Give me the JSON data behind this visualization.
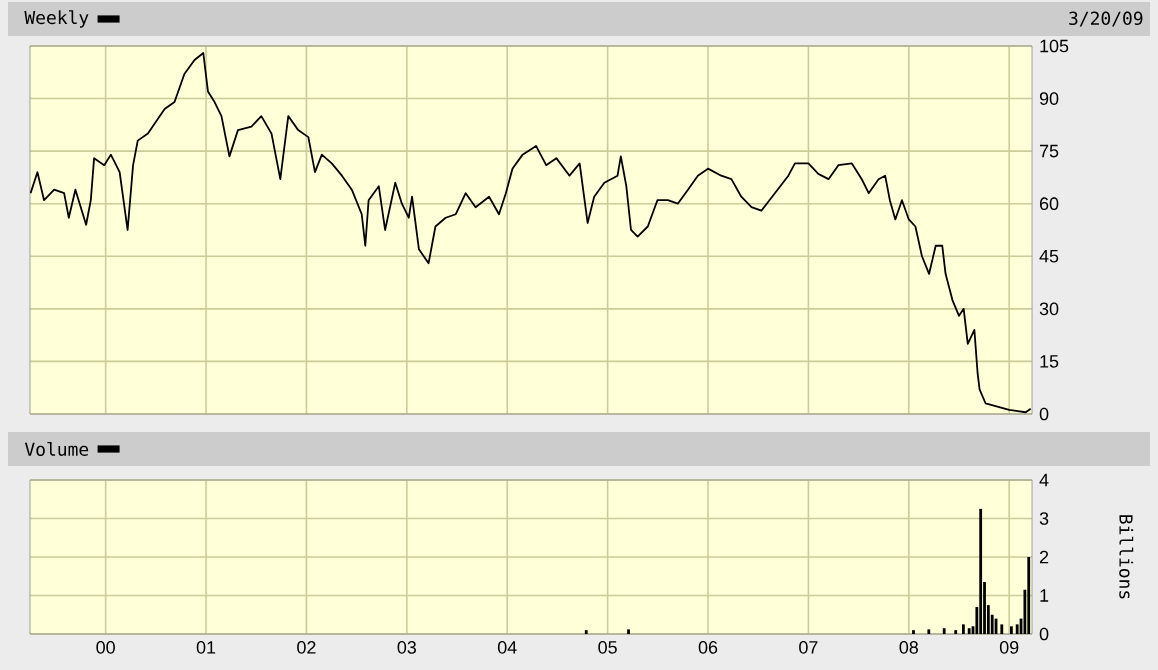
{
  "chart_data": [
    {
      "type": "line",
      "annotations": [
        "3/20/09"
      ],
      "legend": "top left",
      "grid": true,
      "tick_labels": "y",
      "xlim": [
        "1999-04-01",
        "2009-03-25"
      ],
      "xticks": [
        {
          "value": "2000-01-01",
          "label": null
        },
        {
          "value": "2001-01-01",
          "label": null
        },
        {
          "value": "2002-01-01",
          "label": null
        },
        {
          "value": "2003-01-01",
          "label": null
        },
        {
          "value": "2004-01-01",
          "label": null
        },
        {
          "value": "2005-01-01",
          "label": null
        },
        {
          "value": "2006-01-01",
          "label": null
        },
        {
          "value": "2007-01-01",
          "label": null
        },
        {
          "value": "2008-01-01",
          "label": null
        },
        {
          "value": "2009-01-01",
          "label": null
        }
      ],
      "ylim": [
        0,
        105
      ],
      "yticks": [
        0,
        15,
        30,
        45,
        60,
        75,
        90,
        105
      ],
      "series": [
        {
          "name": "Weekly",
          "color": "#000000",
          "x": [
            "1999-04-03",
            "1999-04-28",
            "1999-05-22",
            "1999-06-28",
            "1999-08-03",
            "1999-08-20",
            "1999-09-13",
            "1999-10-22",
            "1999-11-08",
            "1999-11-20",
            "1999-12-27",
            "2000-01-20",
            "2000-02-21",
            "2000-03-21",
            "2000-04-10",
            "2000-04-27",
            "2000-06-03",
            "2000-08-03",
            "2000-09-08",
            "2000-10-14",
            "2000-11-20",
            "2000-12-22",
            "2001-01-08",
            "2001-02-01",
            "2001-02-26",
            "2001-03-27",
            "2001-04-27",
            "2001-06-15",
            "2001-07-21",
            "2001-08-27",
            "2001-09-28",
            "2001-10-27",
            "2001-12-02",
            "2002-01-08",
            "2002-02-01",
            "2002-02-26",
            "2002-04-03",
            "2002-05-10",
            "2002-06-15",
            "2002-07-21",
            "2002-08-03",
            "2002-08-15",
            "2002-09-21",
            "2002-10-14",
            "2002-11-20",
            "2002-12-14",
            "2003-01-08",
            "2003-01-20",
            "2003-02-14",
            "2003-03-21",
            "2003-04-15",
            "2003-05-22",
            "2003-06-28",
            "2003-08-03",
            "2003-09-08",
            "2003-10-27",
            "2003-12-02",
            "2003-12-27",
            "2004-01-20",
            "2004-02-26",
            "2004-04-15",
            "2004-05-22",
            "2004-06-28",
            "2004-08-15",
            "2004-09-21",
            "2004-10-20",
            "2004-11-13",
            "2004-12-20",
            "2005-02-06",
            "2005-02-18",
            "2005-03-10",
            "2005-03-27",
            "2005-04-20",
            "2005-05-27",
            "2005-07-01",
            "2005-08-08",
            "2005-09-13",
            "2005-10-20",
            "2005-11-25",
            "2006-01-01",
            "2006-02-18",
            "2006-03-27",
            "2006-05-02",
            "2006-06-08",
            "2006-07-14",
            "2006-09-01",
            "2006-10-20",
            "2006-11-13",
            "2007-01-01",
            "2007-02-06",
            "2007-03-15",
            "2007-04-20",
            "2007-06-08",
            "2007-07-14",
            "2007-08-08",
            "2007-09-13",
            "2007-10-07",
            "2007-10-24",
            "2007-11-13",
            "2007-12-07",
            "2008-01-01",
            "2008-01-25",
            "2008-02-18",
            "2008-03-15",
            "2008-04-08",
            "2008-05-02",
            "2008-05-14",
            "2008-06-08",
            "2008-07-02",
            "2008-07-19",
            "2008-08-03",
            "2008-08-27",
            "2008-09-08",
            "2008-09-15",
            "2008-10-07",
            "2009-01-01",
            "2009-03-02",
            "2009-03-20"
          ],
          "values": [
            63,
            69,
            61,
            64,
            63,
            56,
            64,
            54,
            61,
            73,
            71,
            74,
            69,
            52.5,
            71,
            78,
            80,
            87,
            89,
            97,
            101,
            103,
            92,
            89,
            85,
            73.5,
            81,
            82,
            85,
            80,
            67,
            85,
            81,
            79,
            69,
            74,
            71.5,
            68,
            64,
            57,
            48,
            61,
            65,
            52.5,
            66,
            60,
            56,
            62,
            47,
            43,
            53.5,
            56,
            57,
            63,
            59,
            62,
            57,
            63,
            70,
            74,
            76.5,
            71,
            73,
            68,
            71.5,
            54.5,
            62,
            66,
            68,
            73.5,
            65,
            52.5,
            50.6,
            53.5,
            61,
            61,
            60,
            64,
            68,
            70,
            68,
            67,
            62,
            59,
            58,
            63,
            68,
            71.5,
            71.5,
            68.5,
            67,
            71,
            71.5,
            67,
            63,
            67,
            68,
            61,
            55.5,
            61,
            55.5,
            53.5,
            45,
            40,
            48,
            48,
            40,
            32.5,
            28,
            30,
            20,
            24,
            11.5,
            7,
            3,
            1.2,
            0.5,
            1.5
          ]
        }
      ]
    },
    {
      "type": "bar",
      "legend": "top left",
      "grid": true,
      "ylabel": "Billions",
      "xlim": [
        "1999-04-01",
        "2009-03-25"
      ],
      "xticks": [
        {
          "value": "2000-01-01",
          "label": "00"
        },
        {
          "value": "2001-01-01",
          "label": "01"
        },
        {
          "value": "2002-01-01",
          "label": "02"
        },
        {
          "value": "2003-01-01",
          "label": "03"
        },
        {
          "value": "2004-01-01",
          "label": "04"
        },
        {
          "value": "2005-01-01",
          "label": "05"
        },
        {
          "value": "2006-01-01",
          "label": "06"
        },
        {
          "value": "2007-01-01",
          "label": "07"
        },
        {
          "value": "2008-01-01",
          "label": "08"
        },
        {
          "value": "2009-01-01",
          "label": "09"
        }
      ],
      "ylim": [
        0,
        4
      ],
      "yticks": [
        0,
        1,
        2,
        3,
        4
      ],
      "series": [
        {
          "name": "Volume",
          "color": "#000000",
          "x": [
            "2004-10-15",
            "2005-03-18",
            "2008-01-18",
            "2008-03-14",
            "2008-05-09",
            "2008-06-20",
            "2008-07-18",
            "2008-08-08",
            "2008-08-22",
            "2008-09-05",
            "2008-09-19",
            "2008-10-03",
            "2008-10-17",
            "2008-10-31",
            "2008-11-14",
            "2008-12-05",
            "2009-01-09",
            "2009-01-30",
            "2009-02-13",
            "2009-02-27",
            "2009-03-13"
          ],
          "values": [
            0.1,
            0.12,
            0.1,
            0.12,
            0.15,
            0.1,
            0.25,
            0.15,
            0.2,
            0.7,
            3.25,
            1.35,
            0.75,
            0.5,
            0.4,
            0.25,
            0.2,
            0.25,
            0.4,
            1.15,
            2.0
          ]
        }
      ]
    }
  ]
}
